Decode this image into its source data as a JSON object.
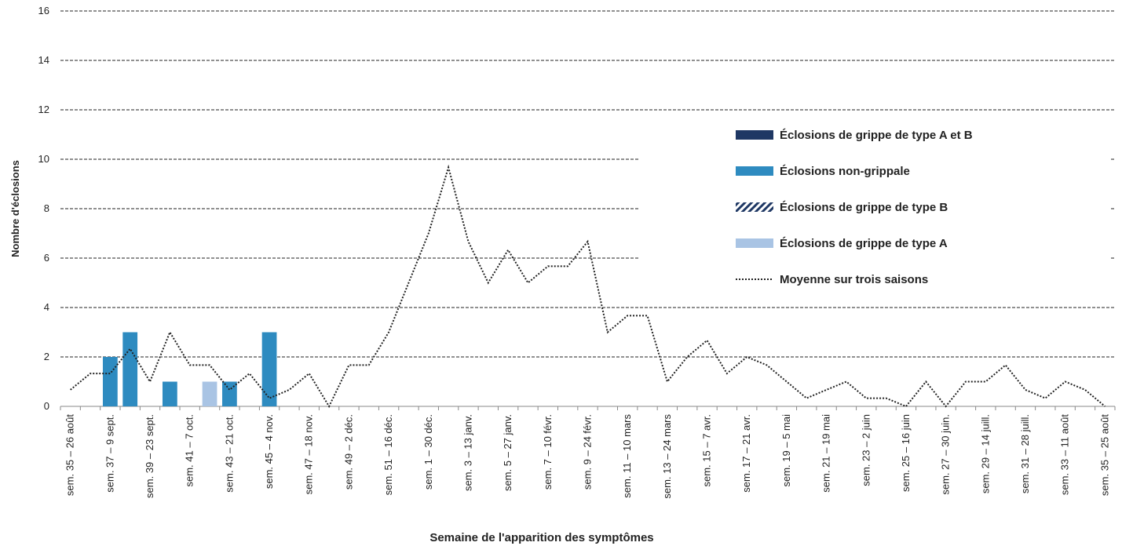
{
  "chart_data": {
    "type": "bar",
    "stacked": true,
    "y_label": "Nombre d'éclosions",
    "x_label": "Semaine de l'apparition des symptômes",
    "categories": [
      "sem. 35 – 26 août",
      null,
      "sem. 37 – 9 sept.",
      null,
      "sem. 39 – 23 sept.",
      null,
      "sem. 41 – 7 oct.",
      null,
      "sem. 43 – 21 oct.",
      null,
      "sem. 45 – 4 nov.",
      null,
      "sem. 47 – 18 nov.",
      null,
      "sem. 49 – 2 déc.",
      null,
      "sem. 51 – 16 déc.",
      null,
      "sem. 1 – 30 déc.",
      null,
      "sem. 3 – 13 janv.",
      null,
      "sem. 5 – 27 janv.",
      null,
      "sem. 7 – 10 févr.",
      null,
      "sem. 9 – 24 févr.",
      null,
      "sem. 11 – 10 mars",
      null,
      "sem. 13 – 24 mars",
      null,
      "sem. 15 – 7 avr.",
      null,
      "sem. 17 – 21 avr.",
      null,
      "sem. 19 – 5 mai",
      null,
      "sem. 21 – 19 mai",
      null,
      "sem. 23 – 2 juin",
      null,
      "sem. 25 – 16 juin",
      null,
      "sem. 27 – 30 juin.",
      null,
      "sem. 29 – 14 juill.",
      null,
      "sem. 31 – 28 juill.",
      null,
      "sem. 33 – 11 août",
      null,
      "sem. 35 – 25 août"
    ],
    "series": [
      {
        "name": "Éclosions de grippe de type A et B",
        "color": "#1f3864",
        "values": [
          0,
          0,
          0,
          0,
          0,
          0,
          0,
          0,
          0,
          0,
          0,
          0,
          0,
          0,
          0,
          0,
          0,
          0,
          0,
          0,
          0,
          0,
          0,
          0,
          0,
          0,
          0,
          0,
          0,
          0,
          0,
          0,
          0,
          0,
          0,
          0,
          0,
          0,
          0,
          0,
          0,
          0,
          0,
          0,
          0,
          0,
          0,
          0,
          0,
          0,
          0,
          0,
          0
        ]
      },
      {
        "name": "Éclosions non-grippale",
        "color": "#2e8bc0",
        "values": [
          0,
          0,
          2,
          3,
          0,
          1,
          0,
          0,
          1,
          0,
          3,
          0,
          0,
          0,
          0,
          0,
          0,
          0,
          0,
          0,
          0,
          0,
          0,
          0,
          0,
          0,
          0,
          0,
          0,
          0,
          0,
          0,
          0,
          0,
          0,
          0,
          0,
          0,
          0,
          0,
          0,
          0,
          0,
          0,
          0,
          0,
          0,
          0,
          0,
          0,
          0,
          0,
          0
        ]
      },
      {
        "name": "Éclosions de grippe de type B",
        "color": "#1f3864",
        "pattern": "hatch",
        "values": [
          0,
          0,
          0,
          0,
          0,
          0,
          0,
          0,
          0,
          0,
          0,
          0,
          0,
          0,
          0,
          0,
          0,
          0,
          0,
          0,
          0,
          0,
          0,
          0,
          0,
          0,
          0,
          0,
          0,
          0,
          0,
          0,
          0,
          0,
          0,
          0,
          0,
          0,
          0,
          0,
          0,
          0,
          0,
          0,
          0,
          0,
          0,
          0,
          0,
          0,
          0,
          0,
          0
        ]
      },
      {
        "name": "Éclosions de grippe de type A",
        "color": "#a9c4e4",
        "values": [
          0,
          0,
          0,
          0,
          0,
          0,
          0,
          1,
          0,
          0,
          0,
          0,
          0,
          0,
          0,
          0,
          0,
          0,
          0,
          0,
          0,
          0,
          0,
          0,
          0,
          0,
          0,
          0,
          0,
          0,
          0,
          0,
          0,
          0,
          0,
          0,
          0,
          0,
          0,
          0,
          0,
          0,
          0,
          0,
          0,
          0,
          0,
          0,
          0,
          0,
          0,
          0,
          0
        ]
      },
      {
        "name": "Moyenne sur trois saisons",
        "color": "#222222",
        "style": "dotted-line",
        "values": [
          0.67,
          1.33,
          1.33,
          2.33,
          1,
          3,
          1.67,
          1.67,
          0.67,
          1.33,
          0.33,
          0.67,
          1.33,
          0,
          1.67,
          1.67,
          3,
          5,
          7,
          9.67,
          6.67,
          5,
          6.33,
          5,
          5.67,
          5.67,
          6.67,
          3,
          3.67,
          3.67,
          1,
          2,
          2.67,
          1.33,
          2,
          1.67,
          1,
          0.33,
          0.67,
          1,
          0.33,
          0.33,
          0,
          1,
          0,
          1,
          1,
          1.67,
          0.67,
          0.33,
          1,
          0.67,
          0
        ]
      }
    ],
    "ylim": [
      0,
      16
    ],
    "yticks": [
      0,
      2,
      4,
      6,
      8,
      10,
      12,
      14,
      16
    ],
    "grid": true,
    "legend": "right"
  }
}
